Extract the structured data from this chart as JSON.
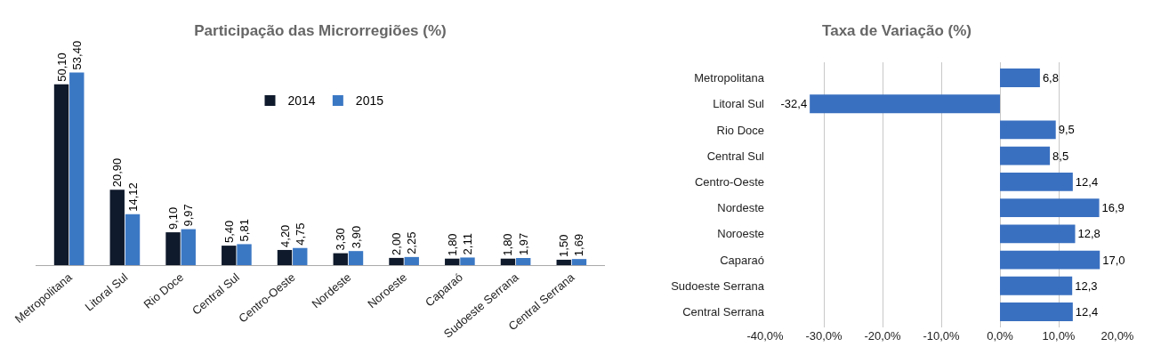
{
  "chart_data": [
    {
      "type": "bar",
      "title": "Participação das Microrregiões (%)",
      "categories": [
        "Metropolitana",
        "Litoral Sul",
        "Rio Doce",
        "Central Sul",
        "Centro-Oeste",
        "Nordeste",
        "Noroeste",
        "Caparaó",
        "Sudoeste Serrana",
        "Central Serrana"
      ],
      "series": [
        {
          "name": "2014",
          "color": "#0f1a2c",
          "values": [
            50.1,
            20.9,
            9.1,
            5.4,
            4.2,
            3.3,
            2.0,
            1.8,
            1.8,
            1.5
          ],
          "value_labels": [
            "50,10",
            "20,90",
            "9,10",
            "5,40",
            "4,20",
            "3,30",
            "2,00",
            "1,80",
            "1,80",
            "1,50"
          ]
        },
        {
          "name": "2015",
          "color": "#3b78c4",
          "values": [
            53.4,
            14.12,
            9.97,
            5.81,
            4.75,
            3.9,
            2.25,
            2.11,
            1.97,
            1.69
          ],
          "value_labels": [
            "53,40",
            "14,12",
            "9,97",
            "5,81",
            "4,75",
            "3,90",
            "2,25",
            "2,11",
            "1,97",
            "1,69"
          ]
        }
      ],
      "legend": "top",
      "grid": false
    },
    {
      "type": "bar",
      "orientation": "horizontal",
      "title": "Taxa de Variação (%)",
      "categories": [
        "Metropolitana",
        "Litoral Sul",
        "Rio Doce",
        "Central Sul",
        "Centro-Oeste",
        "Nordeste",
        "Noroeste",
        "Caparaó",
        "Sudoeste Serrana",
        "Central Serrana"
      ],
      "values": [
        6.8,
        -32.4,
        9.5,
        8.5,
        12.4,
        16.9,
        12.8,
        17.0,
        12.3,
        12.4
      ],
      "value_labels": [
        "6,8",
        "-32,4",
        "9,5",
        "8,5",
        "12,4",
        "16,9",
        "12,8",
        "17,0",
        "12,3",
        "12,4"
      ],
      "color": "#3a70c0",
      "xlim": [
        -40,
        20
      ],
      "xticks": [
        {
          "value": -40,
          "label": "-40,0%"
        },
        {
          "value": -30,
          "label": "-30,0%"
        },
        {
          "value": -20,
          "label": "-20,0%"
        },
        {
          "value": -10,
          "label": "-10,0%"
        },
        {
          "value": 0,
          "label": "0,0%"
        },
        {
          "value": 10,
          "label": "10,0%"
        },
        {
          "value": 20,
          "label": "20,0%"
        }
      ],
      "grid": "x",
      "legend": false
    }
  ]
}
